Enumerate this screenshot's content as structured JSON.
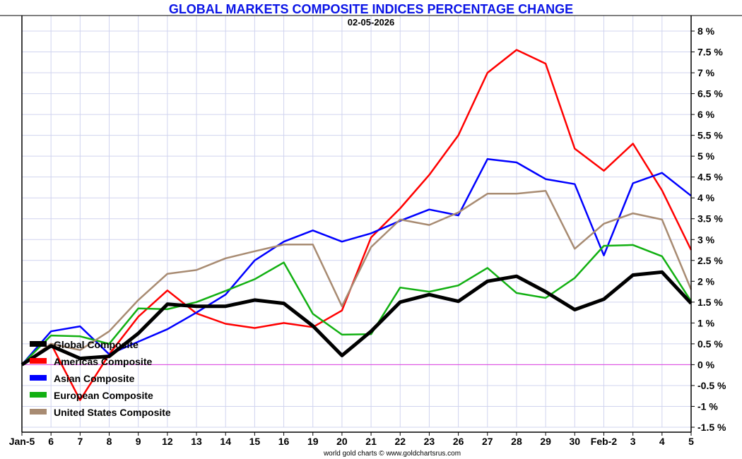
{
  "chart_data": {
    "type": "line",
    "title": "GLOBAL MARKETS COMPOSITE INDICES PERCENTAGE CHANGE",
    "subtitle": "02-05-2026",
    "footer": "world gold charts © www.goldchartsrus.com",
    "xlabel": "",
    "ylabel": "",
    "ylim": [
      -1.5,
      8
    ],
    "y_ticks": [
      8,
      7.5,
      7,
      6.5,
      6,
      5.5,
      5,
      4.5,
      4,
      3.5,
      3,
      2.5,
      2,
      1.5,
      1,
      0.5,
      0,
      -0.5,
      -1,
      -1.5
    ],
    "y_tick_labels": [
      "8 %",
      "7.5 %",
      "7 %",
      "6.5 %",
      "6 %",
      "5.5 %",
      "5 %",
      "4.5 %",
      "4 %",
      "3.5 %",
      "3 %",
      "2.5 %",
      "2 %",
      "1.5 %",
      "1 %",
      "0.5 %",
      "0 %",
      "-0.5 %",
      "-1 %",
      "-1.5 %"
    ],
    "y_axis_side": "right",
    "grid": true,
    "zero_line_color": "#e040e0",
    "grid_color": "#d0d4ef",
    "legend_position": "bottom-left",
    "categories": [
      "Jan-5",
      "6",
      "7",
      "8",
      "9",
      "12",
      "13",
      "14",
      "15",
      "16",
      "19",
      "20",
      "21",
      "22",
      "23",
      "26",
      "27",
      "28",
      "29",
      "30",
      "Feb-2",
      "3",
      "4",
      "5"
    ],
    "series": [
      {
        "name": "Americas Composite",
        "color": "#ff0000",
        "width": "normal",
        "values": [
          0,
          0.5,
          -0.85,
          0.25,
          1.15,
          1.78,
          1.23,
          0.98,
          0.88,
          1.0,
          0.9,
          1.3,
          3.05,
          3.75,
          4.55,
          5.5,
          7.0,
          7.55,
          7.22,
          5.18,
          4.65,
          5.3,
          4.18,
          2.75
        ]
      },
      {
        "name": "Asian Composite",
        "color": "#0000ff",
        "width": "normal",
        "values": [
          0,
          0.8,
          0.92,
          0.25,
          0.55,
          0.85,
          1.25,
          1.68,
          2.5,
          2.95,
          3.22,
          2.95,
          3.15,
          3.45,
          3.72,
          3.58,
          4.93,
          4.85,
          4.45,
          4.33,
          2.62,
          4.35,
          4.6,
          4.05
        ]
      },
      {
        "name": "European Composite",
        "color": "#12b012",
        "width": "normal",
        "values": [
          0,
          0.7,
          0.68,
          0.5,
          1.35,
          1.33,
          1.5,
          1.77,
          2.05,
          2.45,
          1.22,
          0.72,
          0.73,
          1.85,
          1.75,
          1.9,
          2.32,
          1.72,
          1.6,
          2.08,
          2.85,
          2.87,
          2.6,
          1.52
        ]
      },
      {
        "name": "United States Composite",
        "color": "#a88b72",
        "width": "normal",
        "values": [
          0,
          0.5,
          0.35,
          0.8,
          1.55,
          2.18,
          2.27,
          2.55,
          2.72,
          2.88,
          2.88,
          1.4,
          2.82,
          3.48,
          3.35,
          3.65,
          4.1,
          4.1,
          4.17,
          2.78,
          3.38,
          3.63,
          3.48,
          1.8
        ]
      },
      {
        "name": "Global Composite",
        "color": "#000000",
        "width": "thick",
        "values": [
          0,
          0.45,
          0.15,
          0.2,
          0.75,
          1.45,
          1.4,
          1.4,
          1.55,
          1.47,
          0.93,
          0.22,
          0.8,
          1.5,
          1.68,
          1.52,
          2.0,
          2.12,
          1.75,
          1.32,
          1.57,
          2.15,
          2.22,
          1.47
        ]
      }
    ],
    "legend_order": [
      "Global Composite",
      "Americas Composite",
      "Asian Composite",
      "European Composite",
      "United States Composite"
    ]
  }
}
